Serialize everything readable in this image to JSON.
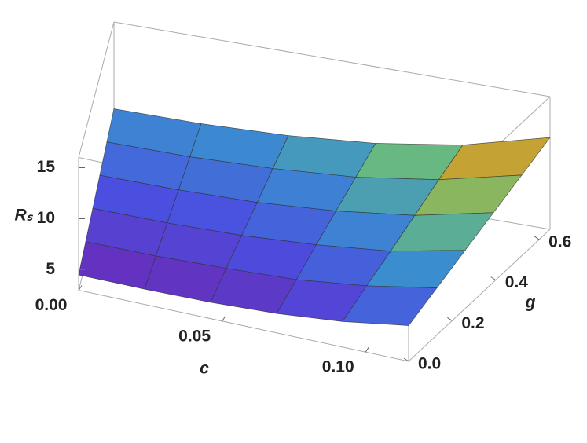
{
  "chart_data": {
    "type": "surface",
    "xlabel": "c",
    "ylabel": "g",
    "zlabel": "Rₛ",
    "x": [
      0,
      0.023,
      0.046,
      0.069,
      0.092,
      0.115
    ],
    "y": [
      0,
      0.13,
      0.26,
      0.39,
      0.52,
      0.65
    ],
    "z": [
      [
        4.5,
        4.5,
        4.6,
        4.9,
        5.5,
        6.5
      ],
      [
        5.1,
        5.1,
        5.3,
        5.6,
        6.4,
        7.6
      ],
      [
        5.7,
        5.7,
        5.9,
        6.4,
        7.2,
        8.7
      ],
      [
        6.3,
        6.3,
        6.5,
        7.1,
        8.1,
        9.8
      ],
      [
        6.9,
        6.9,
        7.2,
        7.8,
        9.0,
        10.9
      ],
      [
        7.5,
        7.5,
        7.8,
        8.5,
        9.8,
        12.0
      ]
    ],
    "xlim": [
      0,
      0.115
    ],
    "ylim": [
      0,
      0.65
    ],
    "zlim": [
      3,
      16
    ],
    "xticks": [
      {
        "value": 0,
        "label": "0.00"
      },
      {
        "value": 0.05,
        "label": "0.05"
      },
      {
        "value": 0.1,
        "label": "0.10"
      }
    ],
    "yticks": [
      {
        "value": 0,
        "label": "0.0"
      },
      0.2,
      0.4,
      0.6
    ],
    "zticks": [
      5,
      10,
      15
    ],
    "colors": [
      "#6a2bb8",
      "#4a4fe0",
      "#3a8fd0",
      "#6fbf73",
      "#c8a030",
      "#b83020"
    ],
    "mesh": true
  }
}
